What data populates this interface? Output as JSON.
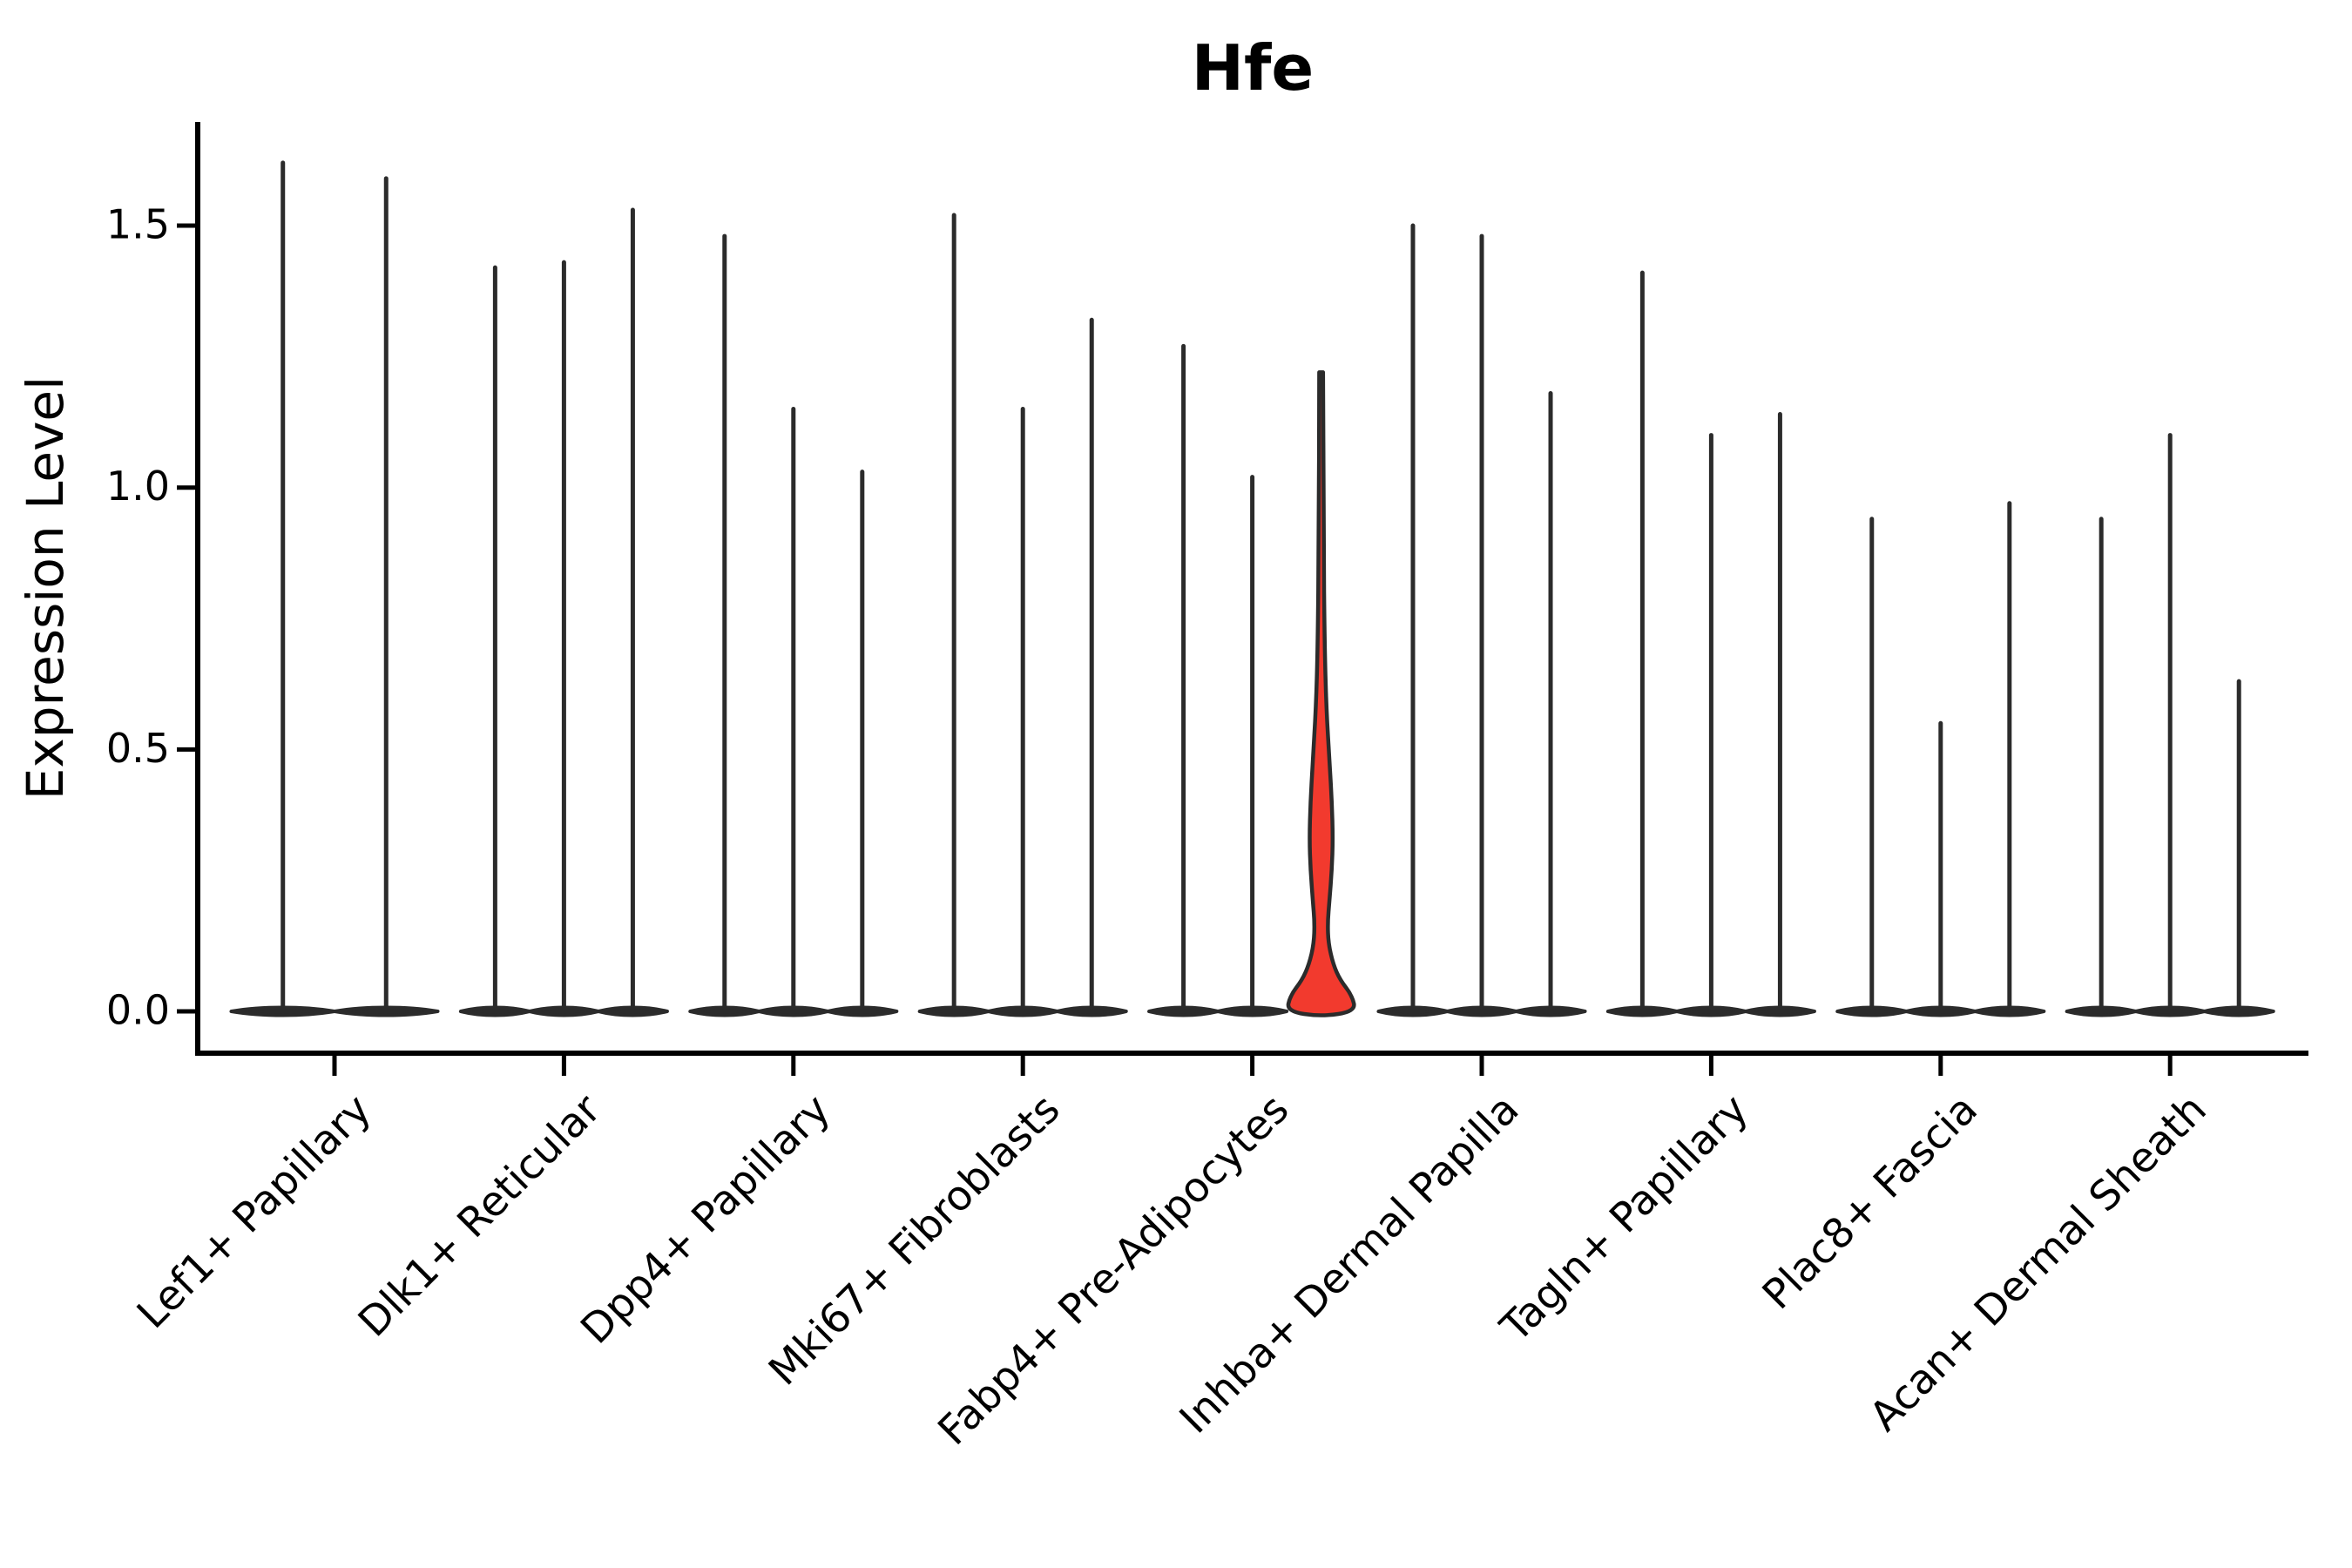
{
  "title": "Hfe",
  "y_axis": {
    "label": "Expression Level",
    "tick_labels": [
      "0.0",
      "0.5",
      "1.0",
      "1.5"
    ]
  },
  "x_axis": {
    "categories": [
      "Lef1+ Papillary",
      "Dlk1+ Reticular",
      "Dpp4+ Papillary",
      "Mki67+ Fibroblasts",
      "Fabp4+ Pre-Adipocytes",
      "Inhba+ Dermal Papilla",
      "Tagln+ Papillary",
      "Plac8+ Fascia",
      "Acan+ Dermal Sheath"
    ]
  },
  "colors": {
    "violin_stroke": "#2b2b2b",
    "highlight_fill": "#f23a2e",
    "axis": "#000000",
    "text": "#000000",
    "background": "#ffffff"
  },
  "chart_data": {
    "type": "violin",
    "title": "Hfe",
    "xlabel": "",
    "ylabel": "Expression Level",
    "ylim": [
      -0.08,
      1.7
    ],
    "yticks": [
      0,
      0.5,
      1.0,
      1.5
    ],
    "grid": false,
    "legend": "none",
    "description": "Stacked-violin style expression plot; each cell-type group holds 2-3 sample violins that are near-zero spikes; one violin (3rd of Fabp4+ Pre-Adipocytes) is highlighted red with visible density.",
    "categories": [
      "Lef1+ Papillary",
      "Dlk1+ Reticular",
      "Dpp4+ Papillary",
      "Mki67+ Fibroblasts",
      "Fabp4+ Pre-Adipocytes",
      "Inhba+ Dermal Papilla",
      "Tagln+ Papillary",
      "Plac8+ Fascia",
      "Acan+ Dermal Sheath"
    ],
    "series": [
      {
        "category": "Lef1+ Papillary",
        "violins": [
          {
            "max": 1.62
          },
          {
            "max": 1.59
          }
        ]
      },
      {
        "category": "Dlk1+ Reticular",
        "violins": [
          {
            "max": 1.42
          },
          {
            "max": 1.43
          },
          {
            "max": 1.53
          }
        ]
      },
      {
        "category": "Dpp4+ Papillary",
        "violins": [
          {
            "max": 1.48
          },
          {
            "max": 1.15
          },
          {
            "max": 1.03
          }
        ]
      },
      {
        "category": "Mki67+ Fibroblasts",
        "violins": [
          {
            "max": 1.52
          },
          {
            "max": 1.15
          },
          {
            "max": 1.32
          }
        ]
      },
      {
        "category": "Fabp4+ Pre-Adipocytes",
        "violins": [
          {
            "max": 1.27
          },
          {
            "max": 1.02
          },
          {
            "max": 1.22,
            "highlight": true
          }
        ]
      },
      {
        "category": "Inhba+ Dermal Papilla",
        "violins": [
          {
            "max": 1.5
          },
          {
            "max": 1.48
          },
          {
            "max": 1.18
          }
        ]
      },
      {
        "category": "Tagln+ Papillary",
        "violins": [
          {
            "max": 1.41
          },
          {
            "max": 1.1
          },
          {
            "max": 1.14
          }
        ]
      },
      {
        "category": "Plac8+ Fascia",
        "violins": [
          {
            "max": 0.94
          },
          {
            "max": 0.55
          },
          {
            "max": 0.97
          }
        ]
      },
      {
        "category": "Acan+ Dermal Sheath",
        "violins": [
          {
            "max": 0.94
          },
          {
            "max": 1.1
          },
          {
            "max": 0.63
          }
        ]
      }
    ],
    "highlight_profile": [
      [
        0,
        1.0
      ],
      [
        0.03,
        0.9
      ],
      [
        0.06,
        0.55
      ],
      [
        0.09,
        0.35
      ],
      [
        0.13,
        0.21
      ],
      [
        0.17,
        0.19
      ],
      [
        0.21,
        0.24
      ],
      [
        0.27,
        0.31
      ],
      [
        0.33,
        0.34
      ],
      [
        0.4,
        0.31
      ],
      [
        0.47,
        0.25
      ],
      [
        0.58,
        0.15
      ],
      [
        0.7,
        0.1
      ],
      [
        0.9,
        0.07
      ],
      [
        1.22,
        0.055
      ]
    ]
  }
}
